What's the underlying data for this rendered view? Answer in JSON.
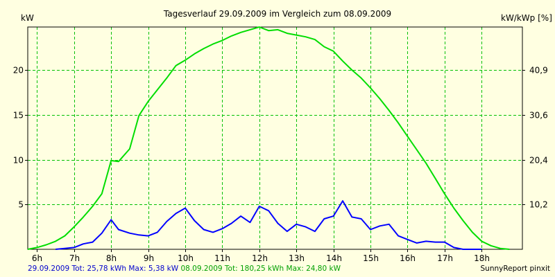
{
  "chart_data": {
    "type": "line",
    "title": "Tagesverlauf 29.09.2009 im Vergleich zum 08.09.2009",
    "ylabel_left": "kW",
    "ylabel_right": "kW/kWp [%]",
    "x_tick_labels": [
      "6h",
      "7h",
      "8h",
      "9h",
      "10h",
      "11h",
      "12h",
      "13h",
      "14h",
      "15h",
      "16h",
      "17h",
      "18h"
    ],
    "x_ticks": [
      6,
      7,
      8,
      9,
      10,
      11,
      12,
      13,
      14,
      15,
      16,
      17,
      18
    ],
    "xlim": [
      5.75,
      19.1
    ],
    "ylim": [
      0,
      24.8
    ],
    "left_ticks": [
      5,
      10,
      15,
      20
    ],
    "left_tick_labels": [
      "5",
      "10",
      "15",
      "20"
    ],
    "right_ticks": [
      5,
      10,
      15,
      20
    ],
    "right_tick_labels": [
      "10,2",
      "20,4",
      "30,6",
      "40,9"
    ],
    "grid": true,
    "series": [
      {
        "name": "08.09.2009",
        "color": "#00DD00",
        "x": [
          5.75,
          6.0,
          6.25,
          6.5,
          6.75,
          7.0,
          7.25,
          7.5,
          7.75,
          8.0,
          8.2,
          8.5,
          8.75,
          9.0,
          9.25,
          9.5,
          9.75,
          10.0,
          10.25,
          10.5,
          10.75,
          11.0,
          11.25,
          11.5,
          11.75,
          12.0,
          12.25,
          12.5,
          12.75,
          13.0,
          13.25,
          13.5,
          13.75,
          14.0,
          14.25,
          14.5,
          14.75,
          15.0,
          15.25,
          15.5,
          15.75,
          16.0,
          16.25,
          16.5,
          16.75,
          17.0,
          17.25,
          17.5,
          17.75,
          18.0,
          18.25,
          18.5,
          18.75
        ],
        "values": [
          0.0,
          0.2,
          0.5,
          0.9,
          1.5,
          2.5,
          3.6,
          4.8,
          6.2,
          9.9,
          9.8,
          11.2,
          14.9,
          16.5,
          17.8,
          19.1,
          20.5,
          21.1,
          21.8,
          22.4,
          22.9,
          23.3,
          23.8,
          24.2,
          24.5,
          24.8,
          24.4,
          24.5,
          24.1,
          23.9,
          23.7,
          23.4,
          22.6,
          22.1,
          21.0,
          20.0,
          19.1,
          18.0,
          16.8,
          15.5,
          14.1,
          12.6,
          11.1,
          9.6,
          7.9,
          6.2,
          4.6,
          3.2,
          1.9,
          0.9,
          0.4,
          0.1,
          0.0
        ]
      },
      {
        "name": "29.09.2009",
        "color": "#0000FF",
        "x": [
          6.5,
          6.75,
          7.0,
          7.25,
          7.5,
          7.75,
          8.0,
          8.2,
          8.5,
          8.75,
          9.0,
          9.25,
          9.5,
          9.75,
          10.0,
          10.25,
          10.5,
          10.75,
          11.0,
          11.25,
          11.5,
          11.75,
          12.0,
          12.25,
          12.5,
          12.75,
          13.0,
          13.25,
          13.5,
          13.75,
          14.0,
          14.25,
          14.5,
          14.75,
          15.0,
          15.25,
          15.5,
          15.75,
          16.0,
          16.25,
          16.5,
          16.75,
          17.0,
          17.25,
          17.5,
          17.75,
          18.0
        ],
        "values": [
          0.0,
          0.1,
          0.2,
          0.6,
          0.8,
          1.8,
          3.3,
          2.2,
          1.8,
          1.6,
          1.5,
          1.9,
          3.1,
          4.0,
          4.6,
          3.2,
          2.2,
          1.9,
          2.3,
          2.9,
          3.7,
          3.0,
          4.8,
          4.3,
          2.9,
          2.0,
          2.8,
          2.5,
          2.0,
          3.4,
          3.7,
          5.4,
          3.6,
          3.4,
          2.2,
          2.6,
          2.8,
          1.5,
          1.1,
          0.7,
          0.9,
          0.8,
          0.8,
          0.2,
          0.0,
          0.0,
          0.0
        ]
      }
    ]
  },
  "footer": {
    "blue_text": "29.09.2009 Tot: 25,78 kWh Max: 5,38 kW",
    "green_text": "08.09.2009 Tot: 180,25 kWh Max: 24,80 kW",
    "credit": "SunnyReport pinxit"
  }
}
